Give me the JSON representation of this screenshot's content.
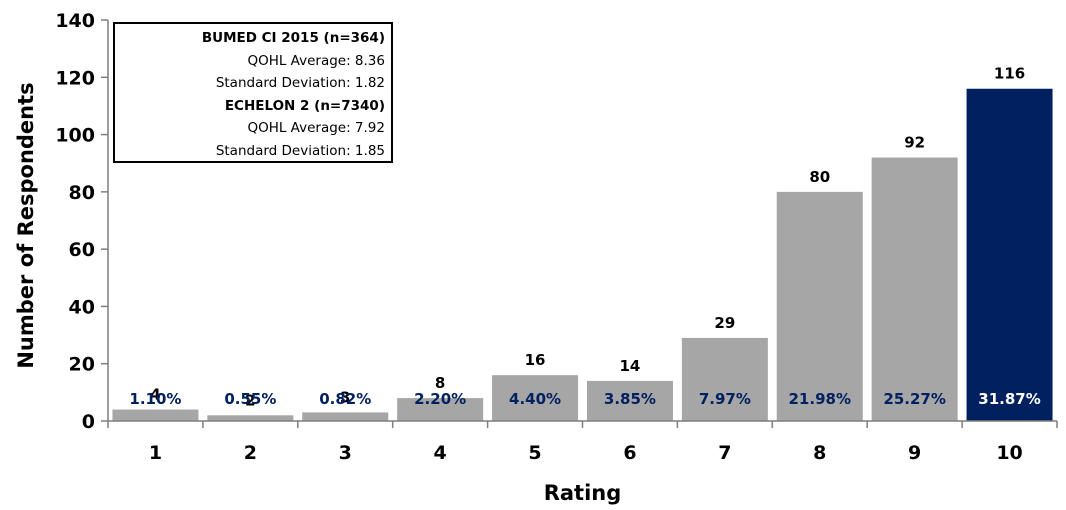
{
  "chart_data": {
    "type": "bar",
    "xlabel": "Rating",
    "ylabel": "Number of Respondents",
    "ylim": [
      0,
      140
    ],
    "ytick_step": 20,
    "categories": [
      "1",
      "2",
      "3",
      "4",
      "5",
      "6",
      "7",
      "8",
      "9",
      "10"
    ],
    "values": [
      4,
      2,
      3,
      8,
      16,
      14,
      29,
      80,
      92,
      116
    ],
    "percent_labels": [
      "1.10%",
      "0.55%",
      "0.82%",
      "2.20%",
      "4.40%",
      "3.85%",
      "7.97%",
      "21.98%",
      "25.27%",
      "31.87%"
    ],
    "bar_colors": [
      "#a6a6a6",
      "#a6a6a6",
      "#a6a6a6",
      "#a6a6a6",
      "#a6a6a6",
      "#a6a6a6",
      "#a6a6a6",
      "#a6a6a6",
      "#a6a6a6",
      "#002060"
    ],
    "percent_label_colors": [
      "#002060",
      "#002060",
      "#002060",
      "#002060",
      "#002060",
      "#002060",
      "#002060",
      "#002060",
      "#002060",
      "#ffffff"
    ],
    "grid": false
  },
  "stats_box": {
    "group1_title": "BUMED CI 2015 (n=364)",
    "group1_avg": "QOHL Average: 8.36",
    "group1_sd": "Standard Deviation: 1.82",
    "group2_title": "ECHELON 2 (n=7340)",
    "group2_avg": "QOHL Average: 7.92",
    "group2_sd": "Standard Deviation: 1.85"
  }
}
